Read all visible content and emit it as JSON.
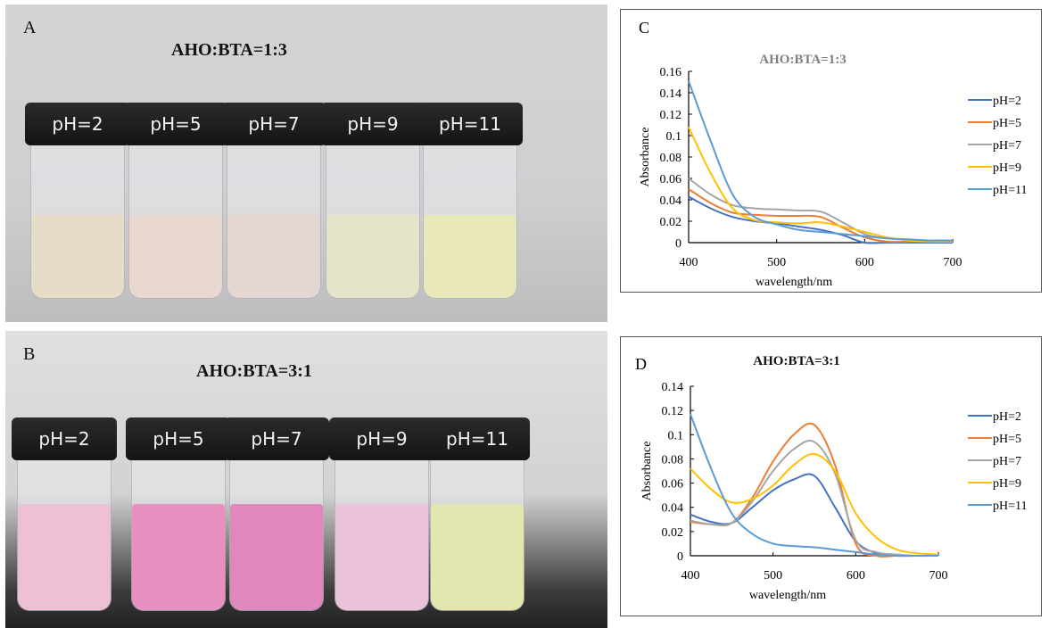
{
  "panels": {
    "A": {
      "letter": "A",
      "title": "AHO:BTA=1:3",
      "vials": [
        "pH=2",
        "pH=5",
        "pH=7",
        "pH=9",
        "pH=11"
      ],
      "liquid_colors": [
        "#e6dcc8",
        "#e8d8d0",
        "#e4d6d0",
        "#e6e4c8",
        "#e8e8b8"
      ]
    },
    "B": {
      "letter": "B",
      "title": "AHO:BTA=3:1",
      "vials": [
        "pH=2",
        "pH=5",
        "pH=7",
        "pH=9",
        "pH=11"
      ],
      "liquid_colors": [
        "#eec0d4",
        "#e890c0",
        "#e088be",
        "#eac2da",
        "#e4e6b0"
      ]
    }
  },
  "chart_data": [
    {
      "panel": "C",
      "type": "line",
      "title": "AHO:BTA=1:3",
      "xlabel": "wavelength/nm",
      "ylabel": "Absorbance",
      "xlim": [
        400,
        700
      ],
      "ylim": [
        0,
        0.16
      ],
      "xticks": [
        "400",
        "500",
        "600",
        "700"
      ],
      "yticks": [
        "0",
        "0.02",
        "0.04",
        "0.06",
        "0.08",
        "0.1",
        "0.12",
        "0.14",
        "0.16"
      ],
      "legend": "right",
      "x": [
        400,
        425,
        450,
        475,
        500,
        525,
        550,
        575,
        600,
        625,
        650,
        675,
        700
      ],
      "series": [
        {
          "name": "pH=2",
          "color": "#4472C4",
          "values": [
            0.043,
            0.032,
            0.024,
            0.02,
            0.018,
            0.015,
            0.012,
            0.007,
            0.0,
            0,
            0,
            0,
            0
          ]
        },
        {
          "name": "pH=5",
          "color": "#ED7D31",
          "values": [
            0.05,
            0.037,
            0.028,
            0.026,
            0.025,
            0.025,
            0.024,
            0.014,
            0.005,
            0.001,
            0.001,
            0.001,
            0.001
          ]
        },
        {
          "name": "pH=7",
          "color": "#A5A5A5",
          "values": [
            0.06,
            0.045,
            0.035,
            0.032,
            0.031,
            0.03,
            0.029,
            0.019,
            0.008,
            0.004,
            0.003,
            0.002,
            0.002
          ]
        },
        {
          "name": "pH=9",
          "color": "#FFC000",
          "values": [
            0.108,
            0.065,
            0.032,
            0.021,
            0.019,
            0.018,
            0.019,
            0.015,
            0.01,
            0.005,
            0.002,
            0.001,
            0.001
          ]
        },
        {
          "name": "pH=11",
          "color": "#5B9BD5",
          "values": [
            0.151,
            0.095,
            0.045,
            0.024,
            0.017,
            0.012,
            0.01,
            0.008,
            0.006,
            0.004,
            0.003,
            0.002,
            0.002
          ]
        }
      ]
    },
    {
      "panel": "D",
      "type": "line",
      "title": "AHO:BTA=3:1",
      "xlabel": "wavelength/nm",
      "ylabel": "Absorbance",
      "xlim": [
        400,
        700
      ],
      "ylim": [
        0,
        0.14
      ],
      "xticks": [
        "400",
        "500",
        "600",
        "700"
      ],
      "yticks": [
        "0",
        "0.02",
        "0.04",
        "0.06",
        "0.08",
        "0.1",
        "0.12",
        "0.14"
      ],
      "legend": "right",
      "x": [
        400,
        425,
        450,
        475,
        500,
        525,
        550,
        575,
        600,
        625,
        650,
        675,
        700
      ],
      "series": [
        {
          "name": "pH=2",
          "color": "#4472C4",
          "values": [
            0.034,
            0.028,
            0.027,
            0.04,
            0.054,
            0.063,
            0.066,
            0.04,
            0.012,
            0.002,
            0,
            0,
            0
          ]
        },
        {
          "name": "pH=5",
          "color": "#ED7D31",
          "values": [
            0.028,
            0.026,
            0.027,
            0.048,
            0.078,
            0.1,
            0.108,
            0.075,
            0.01,
            0,
            0,
            0,
            0
          ]
        },
        {
          "name": "pH=7",
          "color": "#A5A5A5",
          "values": [
            0.029,
            0.026,
            0.027,
            0.045,
            0.07,
            0.088,
            0.094,
            0.068,
            0.013,
            0.003,
            0.001,
            0,
            0
          ]
        },
        {
          "name": "pH=9",
          "color": "#FFC000",
          "values": [
            0.072,
            0.055,
            0.044,
            0.047,
            0.058,
            0.075,
            0.084,
            0.07,
            0.035,
            0.015,
            0.005,
            0.002,
            0.001
          ]
        },
        {
          "name": "pH=11",
          "color": "#5B9BD5",
          "values": [
            0.117,
            0.072,
            0.035,
            0.018,
            0.01,
            0.008,
            0.007,
            0.005,
            0.003,
            0.001,
            0,
            0,
            0
          ]
        }
      ]
    }
  ]
}
